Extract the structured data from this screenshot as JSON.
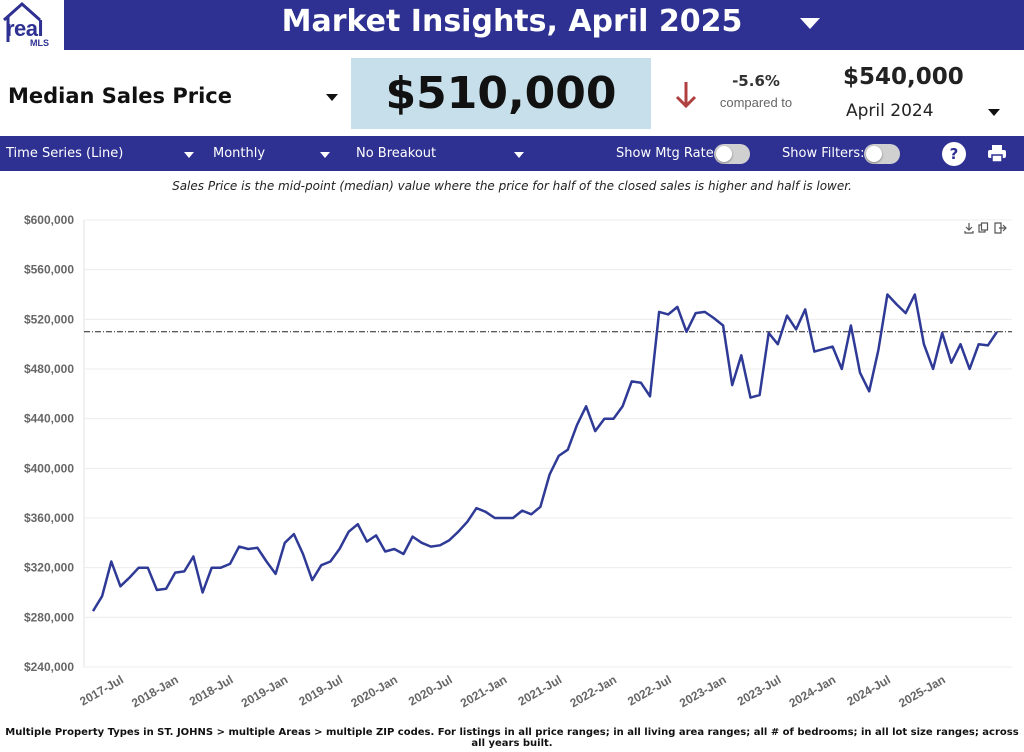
{
  "header": {
    "logo_text": "real",
    "logo_subtext": "MLS",
    "title": "Market Insights, April 2025"
  },
  "metric": {
    "name": "Median Sales Price",
    "value": "$510,000",
    "change_pct": "-5.6%",
    "compared_label": "compared to",
    "prior_value": "$540,000",
    "prior_period": "April 2024",
    "arrow_color": "#b04040"
  },
  "filters": {
    "chart_type": "Time Series (Line)",
    "interval": "Monthly",
    "breakout": "No Breakout",
    "mtg_rate_label": "Show Mtg Rate:",
    "filters_label": "Show Filters:",
    "help_label": "?"
  },
  "definition": "Sales Price is the mid-point (median) value where the price for half of the closed sales is higher and half is lower.",
  "footnote": "Multiple Property Types in ST. JOHNS > multiple Areas > multiple ZIP codes. For listings in all price ranges; in all living area ranges; all # of bedrooms; in all lot size ranges; across all years built.",
  "colors": {
    "brand": "#2e3192",
    "line": "#2e3a96",
    "value_box": "#c6dfeb"
  },
  "chart_data": {
    "type": "line",
    "title": "",
    "xlabel": "",
    "ylabel": "",
    "ylim": [
      240000,
      600000
    ],
    "yticks": [
      240000,
      280000,
      320000,
      360000,
      400000,
      440000,
      480000,
      520000,
      560000,
      600000
    ],
    "ytick_labels": [
      "$240,000",
      "$280,000",
      "$320,000",
      "$360,000",
      "$400,000",
      "$440,000",
      "$480,000",
      "$520,000",
      "$560,000",
      "$600,000"
    ],
    "x_start": "2017-Apr",
    "x_end": "2025-Apr",
    "xtick_labels": [
      "2017-Jul",
      "2018-Jan",
      "2018-Jul",
      "2019-Jan",
      "2019-Jul",
      "2020-Jan",
      "2020-Jul",
      "2021-Jan",
      "2021-Jul",
      "2022-Jan",
      "2022-Jul",
      "2023-Jan",
      "2023-Jul",
      "2024-Jan",
      "2024-Jul",
      "2025-Jan"
    ],
    "reference_line": 510000,
    "grid": true,
    "series": [
      {
        "values": [
          285000,
          297000,
          325000,
          305000,
          312000,
          320000,
          320000,
          302000,
          303000,
          316000,
          317000,
          329000,
          300000,
          320000,
          320000,
          323000,
          337000,
          335000,
          336000,
          325000,
          315000,
          340000,
          347000,
          331000,
          310000,
          322000,
          325000,
          335000,
          349000,
          355000,
          341000,
          346000,
          333000,
          335000,
          331000,
          345000,
          340000,
          337000,
          338000,
          342000,
          349000,
          357000,
          368000,
          365000,
          360000,
          360000,
          360000,
          366000,
          363000,
          369000,
          395000,
          410000,
          415000,
          435000,
          450000,
          430000,
          440000,
          440000,
          450000,
          470000,
          469000,
          458000,
          526000,
          524000,
          530000,
          510000,
          525000,
          526000,
          521000,
          515000,
          467000,
          491000,
          457000,
          459000,
          509000,
          500000,
          523000,
          512000,
          528000,
          494000,
          496000,
          498000,
          480000,
          515000,
          477000,
          462000,
          495000,
          540000,
          532000,
          525000,
          540000,
          500000,
          480000,
          509000,
          485000,
          500000,
          480000,
          500000,
          499000,
          510000
        ]
      }
    ]
  }
}
